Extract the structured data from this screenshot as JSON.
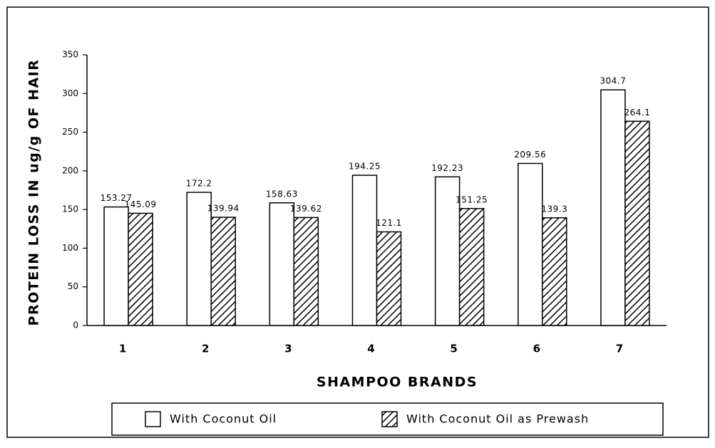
{
  "chart_data": {
    "type": "bar",
    "x_label": "SHAMPOO BRANDS",
    "y_label": "PROTEIN LOSS IN ug/g OF HAIR",
    "categories": [
      "1",
      "2",
      "3",
      "4",
      "5",
      "6",
      "7"
    ],
    "series": [
      {
        "name": "With Coconut Oil",
        "color": "#ffffff",
        "hatch": false,
        "values": [
          153.27,
          172.2,
          158.63,
          194.25,
          192.23,
          209.56,
          304.7
        ]
      },
      {
        "name": "With Coconut Oil as Prewash",
        "color": "#000000",
        "hatch": true,
        "values": [
          145.09,
          139.94,
          139.62,
          121.1,
          151.25,
          139.3,
          264.1
        ]
      }
    ],
    "ylim": [
      0,
      350
    ],
    "yticks": [
      0,
      50,
      100,
      150,
      200,
      250,
      300,
      350
    ],
    "legend": "bottom"
  }
}
